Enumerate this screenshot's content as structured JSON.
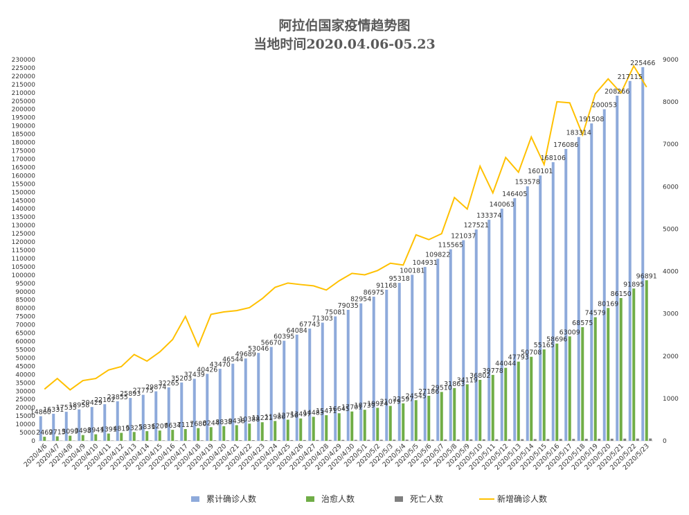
{
  "chart_data": {
    "type": "bar",
    "title": "阿拉伯国家疫情趋势图",
    "subtitle": "当地时间2020.04.06-05.23",
    "categories": [
      "2020/4/6",
      "2020/4/7",
      "2020/4/8",
      "2020/4/9",
      "2020/4/10",
      "2020/4/11",
      "2020/4/12",
      "2020/4/13",
      "2020/4/14",
      "2020/4/15",
      "2020/4/16",
      "2020/4/17",
      "2020/4/18",
      "2020/4/19",
      "2020/4/20",
      "2020/4/21",
      "2020/4/22",
      "2020/4/23",
      "2020/4/24",
      "2020/4/25",
      "2020/4/26",
      "2020/4/27",
      "2020/4/28",
      "2020/4/29",
      "2020/4/30",
      "2020/5/1",
      "2020/5/2",
      "2020/5/3",
      "2020/5/4",
      "2020/5/5",
      "2020/5/6",
      "2020/5/7",
      "2020/5/8",
      "2020/5/9",
      "2020/5/10",
      "2020/5/11",
      "2020/5/12",
      "2020/5/13",
      "2020/5/14",
      "2020/5/15",
      "2020/5/16",
      "2020/5/17",
      "2020/5/18",
      "2020/5/19",
      "2020/5/20",
      "2020/5/21",
      "2020/5/22",
      "2020/5/23"
    ],
    "series": [
      {
        "name": "累计确诊人数",
        "axis": "left",
        "color": "#8eaadb",
        "values": [
          14860,
          16331,
          17535,
          18958,
          20429,
          22102,
          23855,
          25893,
          27775,
          29874,
          32265,
          35203,
          37439,
          40426,
          43470,
          46544,
          49689,
          53046,
          56670,
          60395,
          64084,
          67743,
          71303,
          75081,
          79035,
          82954,
          86975,
          91168,
          95318,
          100181,
          104931,
          109822,
          115565,
          121037,
          127521,
          133374,
          140063,
          146405,
          153578,
          160101,
          168106,
          176086,
          183314,
          191508,
          200053,
          208266,
          217115,
          225466
        ]
      },
      {
        "name": "治愈人数",
        "axis": "left",
        "color": "#70ad47",
        "values": [
          2469,
          2715,
          3099,
          3498,
          3941,
          4391,
          4819,
          5323,
          5831,
          6207,
          6634,
          7111,
          7680,
          8244,
          8838,
          9438,
          10388,
          11221,
          11980,
          12756,
          13497,
          14483,
          15471,
          16645,
          17701,
          18739,
          19924,
          21079,
          22597,
          24545,
          27186,
          29510,
          31863,
          34119,
          36802,
          39778,
          44044,
          47793,
          50708,
          55165,
          58696,
          63009,
          68575,
          74579,
          80169,
          86150,
          91895,
          96891
        ]
      },
      {
        "name": "死亡人数",
        "axis": "left",
        "color": "#7f7f7f",
        "values": [
          120,
          135,
          150,
          165,
          180,
          195,
          210,
          225,
          240,
          255,
          270,
          290,
          310,
          330,
          350,
          370,
          390,
          410,
          430,
          455,
          480,
          505,
          530,
          560,
          590,
          620,
          650,
          680,
          710,
          740,
          770,
          800,
          835,
          870,
          905,
          940,
          975,
          1010,
          1050,
          1090,
          1130,
          1170,
          1210,
          1250,
          1290,
          1330,
          1370,
          1410
        ]
      },
      {
        "name": "新增确诊人数",
        "axis": "right",
        "color": "#ffc000",
        "type": "line",
        "values": [
          1220,
          1471,
          1204,
          1423,
          1471,
          1673,
          1753,
          2038,
          1882,
          2099,
          2391,
          2938,
          2236,
          2987,
          3044,
          3074,
          3145,
          3357,
          3624,
          3725,
          3689,
          3659,
          3560,
          3778,
          3954,
          3919,
          4021,
          4193,
          4150,
          4863,
          4750,
          4891,
          5743,
          5472,
          6484,
          5853,
          6689,
          6342,
          7173,
          6523,
          8005,
          7980,
          7228,
          8194,
          8545,
          8213,
          8849,
          8351
        ]
      }
    ],
    "ylim": [
      0,
      230000
    ],
    "y_ticks": [
      "0",
      "5000",
      "10000",
      "15000",
      "20000",
      "25000",
      "30000",
      "35000",
      "40000",
      "45000",
      "50000",
      "55000",
      "60000",
      "65000",
      "70000",
      "75000",
      "80000",
      "85000",
      "90000",
      "95000",
      "100000",
      "105000",
      "110000",
      "115000",
      "120000",
      "125000",
      "130000",
      "135000",
      "140000",
      "145000",
      "150000",
      "155000",
      "160000",
      "165000",
      "170000",
      "175000",
      "180000",
      "185000",
      "190000",
      "195000",
      "200000",
      "205000",
      "210000",
      "215000",
      "220000",
      "225000",
      "230000"
    ],
    "y2lim": [
      0,
      9000
    ],
    "y2_ticks": [
      "0",
      "1000",
      "2000",
      "3000",
      "4000",
      "5000",
      "6000",
      "7000",
      "8000",
      "9000"
    ],
    "data_labels": [
      "累计确诊人数",
      "治愈人数"
    ],
    "grid": false,
    "legend": "bottom"
  }
}
